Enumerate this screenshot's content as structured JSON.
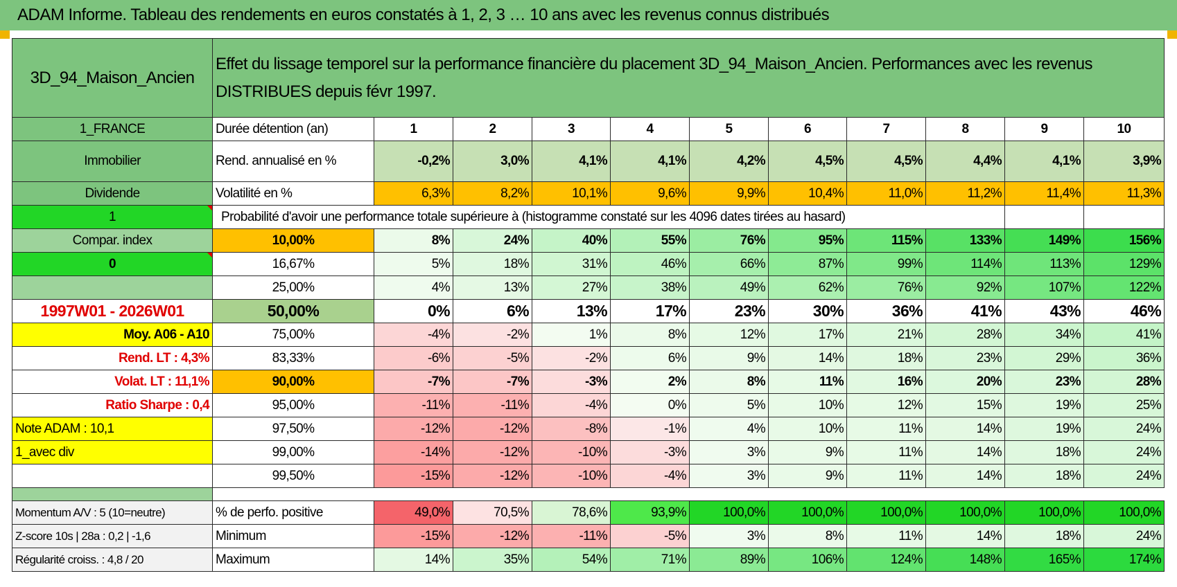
{
  "header": {
    "title": "ADAM Informe. Tableau des rendements en euros constatés à 1, 2, 3 … 10 ans avec les revenus connus distribués"
  },
  "left": {
    "fund_name": "3D_94_Maison_Ancien",
    "country": "1_FRANCE",
    "category": "Immobilier",
    "income_type": "Dividende",
    "flag_1": "1",
    "compar_label": "Compar. index",
    "flag_0": "0",
    "period": "1997W01 - 2026W01",
    "moy": "Moy. A06 - A10",
    "rend_lt": "Rend. LT :    4,3%",
    "volat_lt": "Volat. LT :    11,1%",
    "sharpe": "Ratio Sharpe :     0,4",
    "note": "Note ADAM : 10,1",
    "avec_div": "1_avec div",
    "momentum": "Momentum A/V : 5 (10=neutre)",
    "zscore": "Z-score 10s | 28a : 0,2 | -1,6",
    "regularite": "Régularité croiss. : 4,8 / 20"
  },
  "description": "Effet du lissage temporel sur la performance financière du placement 3D_94_Maison_Ancien. Performances avec les revenus DISTRIBUES depuis févr 1997.",
  "labels": {
    "duree": "Durée détention (an)",
    "rend": "Rend. annualisé en %",
    "vol": "Volatilité en %",
    "proba": "Probabilité d'avoir une performance totale supérieure à (histogramme constaté sur les 4096 dates tirées au hasard)",
    "pos": "% de perfo. positive",
    "min": "Minimum",
    "max": "Maximum"
  },
  "years": [
    "1",
    "2",
    "3",
    "4",
    "5",
    "6",
    "7",
    "8",
    "9",
    "10"
  ],
  "rend": [
    "-0,2%",
    "3,0%",
    "4,1%",
    "4,1%",
    "4,2%",
    "4,5%",
    "4,5%",
    "4,4%",
    "4,1%",
    "3,9%"
  ],
  "vol": [
    "6,3%",
    "8,2%",
    "10,1%",
    "9,6%",
    "9,9%",
    "10,4%",
    "11,0%",
    "11,2%",
    "11,4%",
    "11,3%"
  ],
  "percentiles": [
    {
      "p": "10,00%",
      "v": [
        "8%",
        "24%",
        "40%",
        "55%",
        "76%",
        "95%",
        "115%",
        "133%",
        "149%",
        "156%"
      ]
    },
    {
      "p": "16,67%",
      "v": [
        "5%",
        "18%",
        "31%",
        "46%",
        "66%",
        "87%",
        "99%",
        "114%",
        "113%",
        "129%"
      ]
    },
    {
      "p": "25,00%",
      "v": [
        "4%",
        "13%",
        "27%",
        "38%",
        "49%",
        "62%",
        "76%",
        "92%",
        "107%",
        "122%"
      ]
    },
    {
      "p": "50,00%",
      "v": [
        "0%",
        "6%",
        "13%",
        "17%",
        "23%",
        "30%",
        "36%",
        "41%",
        "43%",
        "46%"
      ]
    },
    {
      "p": "75,00%",
      "v": [
        "-4%",
        "-2%",
        "1%",
        "8%",
        "12%",
        "17%",
        "21%",
        "28%",
        "34%",
        "41%"
      ]
    },
    {
      "p": "83,33%",
      "v": [
        "-6%",
        "-5%",
        "-2%",
        "6%",
        "9%",
        "14%",
        "18%",
        "23%",
        "29%",
        "36%"
      ]
    },
    {
      "p": "90,00%",
      "v": [
        "-7%",
        "-7%",
        "-3%",
        "2%",
        "8%",
        "11%",
        "16%",
        "20%",
        "23%",
        "28%"
      ]
    },
    {
      "p": "95,00%",
      "v": [
        "-11%",
        "-11%",
        "-4%",
        "0%",
        "5%",
        "10%",
        "12%",
        "15%",
        "19%",
        "25%"
      ]
    },
    {
      "p": "97,50%",
      "v": [
        "-12%",
        "-12%",
        "-8%",
        "-1%",
        "4%",
        "10%",
        "11%",
        "14%",
        "19%",
        "24%"
      ]
    },
    {
      "p": "99,00%",
      "v": [
        "-14%",
        "-12%",
        "-10%",
        "-3%",
        "3%",
        "9%",
        "11%",
        "14%",
        "18%",
        "24%"
      ]
    },
    {
      "p": "99,50%",
      "v": [
        "-15%",
        "-12%",
        "-10%",
        "-4%",
        "3%",
        "9%",
        "11%",
        "14%",
        "18%",
        "24%"
      ]
    }
  ],
  "positive": [
    "49,0%",
    "70,5%",
    "78,6%",
    "93,9%",
    "100,0%",
    "100,0%",
    "100,0%",
    "100,0%",
    "100,0%",
    "100,0%"
  ],
  "minimum": [
    "-15%",
    "-12%",
    "-11%",
    "-5%",
    "3%",
    "8%",
    "11%",
    "14%",
    "18%",
    "24%"
  ],
  "maximum": [
    "14%",
    "35%",
    "54%",
    "71%",
    "89%",
    "106%",
    "124%",
    "148%",
    "165%",
    "174%"
  ],
  "colors": {
    "header_green": "#7dc47e",
    "bright_green": "#22d626",
    "yellow": "#ffff00",
    "orange": "#ffc000",
    "red_text": "#e00000"
  }
}
